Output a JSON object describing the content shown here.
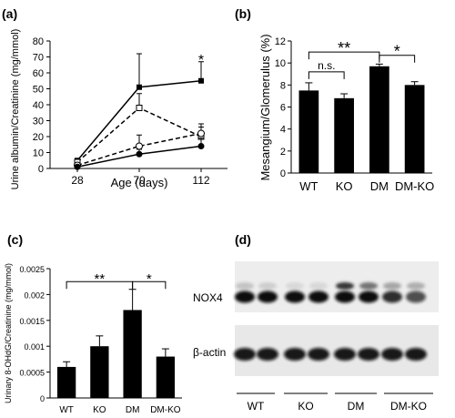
{
  "panels": {
    "a": "(a)",
    "b": "(b)",
    "c": "(c)",
    "d": "(d)"
  },
  "chart_data": [
    {
      "panel": "a",
      "type": "line",
      "xlabel": "Age (days)",
      "ylabel": "Urine albumin/Creatinine (mg/mmol)",
      "x": [
        28,
        70,
        112
      ],
      "ylim": [
        0,
        80
      ],
      "yticks": [
        0,
        10,
        20,
        30,
        40,
        50,
        60,
        70,
        80
      ],
      "series": [
        {
          "marker": "filled-square",
          "dash": "solid",
          "values": [
            5,
            51,
            55
          ],
          "err": [
            1,
            21,
            12
          ]
        },
        {
          "marker": "open-square",
          "dash": "dashed",
          "values": [
            4,
            38,
            20
          ],
          "err": [
            1,
            9,
            6
          ]
        },
        {
          "marker": "open-circle",
          "dash": "dashed",
          "values": [
            2,
            14,
            22
          ],
          "err": [
            1,
            7,
            6
          ]
        },
        {
          "marker": "filled-circle",
          "dash": "solid",
          "values": [
            1,
            9,
            14
          ],
          "err": [
            1,
            3,
            5
          ]
        }
      ],
      "annotations": [
        {
          "x": 112,
          "text": "*"
        }
      ]
    },
    {
      "panel": "b",
      "type": "bar",
      "ylabel": "Mesangium/Glomerulus (%)",
      "categories": [
        "WT",
        "KO",
        "DM",
        "DM-KO"
      ],
      "values": [
        7.5,
        6.8,
        9.7,
        8.0
      ],
      "err": [
        0.7,
        0.4,
        0.2,
        0.3
      ],
      "ylim": [
        0,
        12
      ],
      "yticks": [
        0,
        2,
        4,
        6,
        8,
        10,
        12
      ],
      "brackets": [
        {
          "from": 0,
          "to": 1,
          "text": "n.s.",
          "level": 9.2
        },
        {
          "from": 0,
          "to": 2,
          "text": "**",
          "level": 11.0
        },
        {
          "from": 2,
          "to": 3,
          "text": "*",
          "level": 10.7
        }
      ]
    },
    {
      "panel": "c",
      "type": "bar",
      "ylabel": "Urinary 8-OHdG/Creatinine (mg/mmol)",
      "categories": [
        "WT",
        "KO",
        "DM",
        "DM-KO"
      ],
      "values": [
        0.0006,
        0.001,
        0.0017,
        0.0008
      ],
      "err": [
        0.0001,
        0.0002,
        0.0004,
        0.00015
      ],
      "ylim": [
        0,
        0.0025
      ],
      "ytick_labels": [
        "0",
        "0.0005",
        "0.001",
        "0.0015",
        "0.002",
        "0.0025"
      ],
      "yticks": [
        0,
        0.0005,
        0.001,
        0.0015,
        0.002,
        0.0025
      ],
      "brackets": [
        {
          "from": 0,
          "to": 2,
          "text": "**",
          "level": 0.00225
        },
        {
          "from": 2,
          "to": 3,
          "text": "*",
          "level": 0.00225
        }
      ]
    }
  ],
  "blot": {
    "labels": [
      "NOX4",
      "β-actin"
    ],
    "groups": [
      "WT",
      "KO",
      "DM",
      "DM-KO"
    ]
  }
}
